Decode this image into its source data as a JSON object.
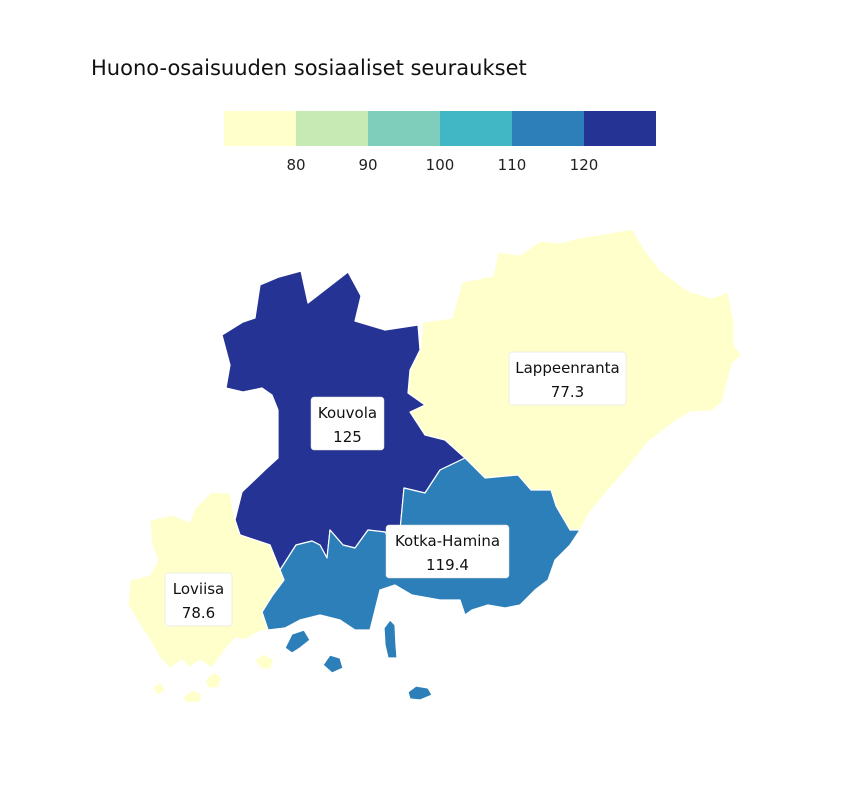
{
  "title": "Huono-osaisuuden sosiaaliset seuraukset",
  "legend": {
    "breaks": [
      "80",
      "90",
      "100",
      "110",
      "120"
    ],
    "colors": [
      "#ffffcc",
      "#c7e9b4",
      "#7fcdbb",
      "#41b6c4",
      "#2c7fb8",
      "#253494"
    ]
  },
  "regions": [
    {
      "id": "lappeenranta",
      "name": "Lappeenranta",
      "value": "77.3",
      "color": "#ffffcc"
    },
    {
      "id": "kouvola",
      "name": "Kouvola",
      "value": "125",
      "color": "#253494"
    },
    {
      "id": "kotka",
      "name": "Kotka-Hamina",
      "value": "119.4",
      "color": "#2c7fb8"
    },
    {
      "id": "loviisa",
      "name": "Loviisa",
      "value": "78.6",
      "color": "#ffffcc"
    }
  ]
}
